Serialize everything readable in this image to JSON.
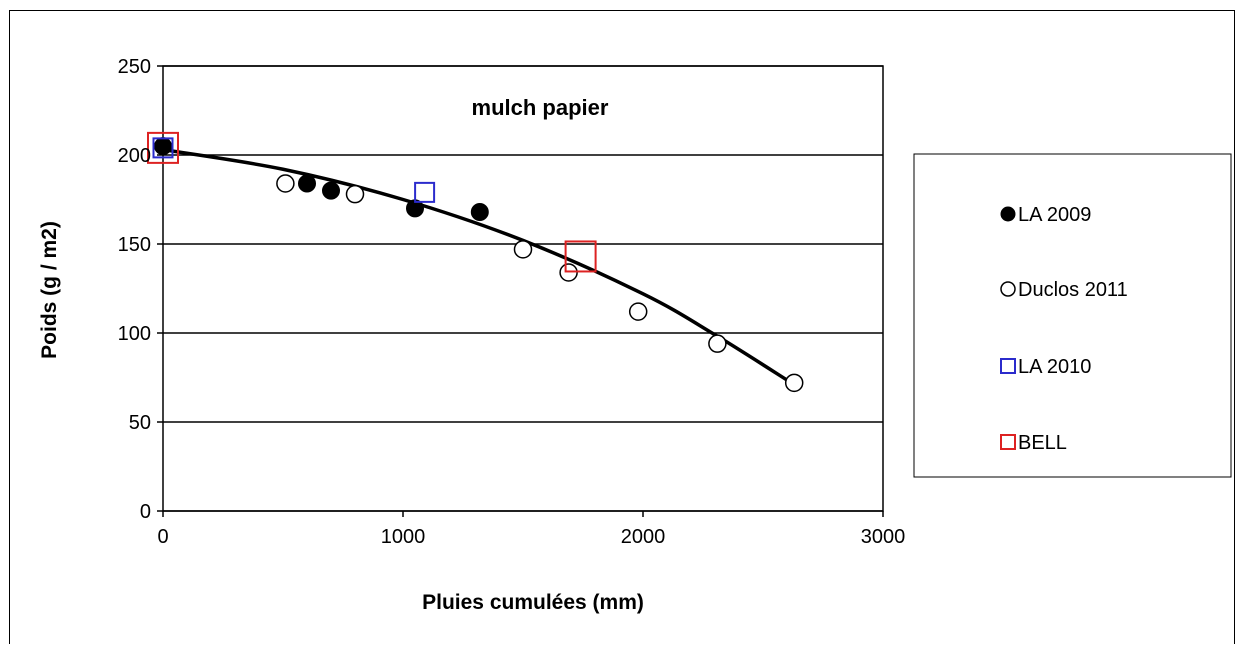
{
  "chart_data": {
    "type": "scatter",
    "title": "mulch papier",
    "xlabel": "Pluies cumulées (mm)",
    "ylabel": "Poids (g / m2)",
    "xlim": [
      0,
      3000
    ],
    "ylim": [
      0,
      250
    ],
    "x_ticks": [
      0,
      1000,
      2000,
      3000
    ],
    "y_ticks": [
      0,
      50,
      100,
      150,
      200,
      250
    ],
    "x_tick_labels": [
      "0",
      "1000",
      "2000",
      "3000"
    ],
    "y_tick_labels": [
      "0",
      "50",
      "100",
      "150",
      "200",
      "250"
    ],
    "grid": "horizontal",
    "legend_position": "right",
    "series": [
      {
        "name": "LA 2009",
        "marker": "filled-circle",
        "color": "#000000",
        "points": [
          [
            0,
            205
          ],
          [
            600,
            184
          ],
          [
            700,
            180
          ],
          [
            1050,
            170
          ],
          [
            1320,
            168
          ]
        ]
      },
      {
        "name": "Duclos 2011",
        "marker": "open-circle",
        "color": "#000000",
        "points": [
          [
            510,
            184
          ],
          [
            800,
            178
          ],
          [
            1500,
            147
          ],
          [
            1690,
            134
          ],
          [
            1980,
            112
          ],
          [
            2310,
            94
          ],
          [
            2630,
            72
          ]
        ]
      },
      {
        "name": "LA 2010",
        "marker": "open-square",
        "color": "#2b2bcc",
        "points": [
          [
            0,
            204
          ],
          [
            1090,
            179
          ]
        ]
      },
      {
        "name": "BELL",
        "marker": "open-square",
        "color": "#dd2222",
        "points": [
          [
            0,
            204
          ],
          [
            1740,
            143
          ]
        ]
      }
    ],
    "trendline": {
      "type": "polynomial",
      "points": [
        [
          0,
          203
        ],
        [
          500,
          192
        ],
        [
          1000,
          175
        ],
        [
          1500,
          152
        ],
        [
          2000,
          122
        ],
        [
          2300,
          99
        ],
        [
          2630,
          71
        ]
      ]
    }
  }
}
